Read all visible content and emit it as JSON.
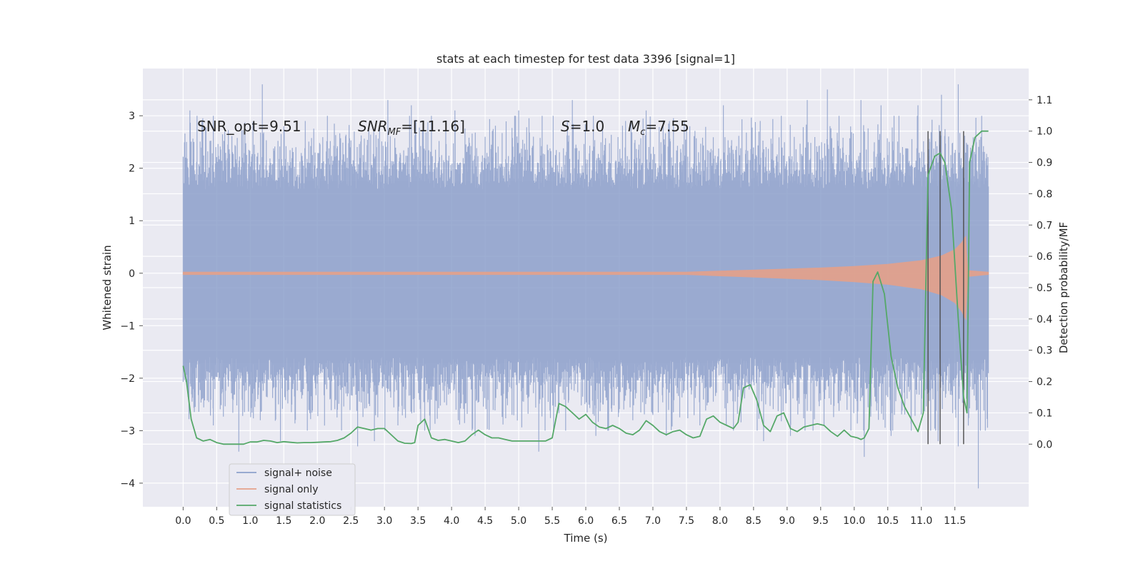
{
  "chart_data": {
    "type": "line",
    "title": "stats at each timestep for test data 3396 [signal=1]",
    "xlabel": "Time (s)",
    "ylabel_left": "Whitened strain",
    "ylabel_right": "Detection probability/MF",
    "xlim": [
      -0.6,
      12.6
    ],
    "ylim_left": [
      -4.45,
      3.9
    ],
    "ylim_right": [
      -0.2,
      1.2
    ],
    "x_ticks": [
      0.0,
      0.5,
      1.0,
      1.5,
      2.0,
      2.5,
      3.0,
      3.5,
      4.0,
      4.5,
      5.0,
      5.5,
      6.0,
      6.5,
      7.0,
      7.5,
      8.0,
      8.5,
      9.0,
      9.5,
      10.0,
      10.5,
      11.0,
      11.5
    ],
    "x_tick_labels": [
      "0.0",
      "0.5",
      "1.0",
      "1.5",
      "2.0",
      "2.5",
      "3.0",
      "3.5",
      "4.0",
      "4.5",
      "5.0",
      "5.5",
      "6.0",
      "6.5",
      "7.0",
      "7.5",
      "8.0",
      "8.5",
      "9.0",
      "9.5",
      "10.0",
      "10.5",
      "11.0",
      "11.5"
    ],
    "y_left_ticks": [
      3,
      2,
      1,
      0,
      -1,
      -2,
      -3,
      -4
    ],
    "y_left_tick_labels": [
      "3",
      "2",
      "1",
      "0",
      "−1",
      "−2",
      "−3",
      "−4"
    ],
    "y_right_ticks": [
      1.1,
      1.0,
      0.9,
      0.8,
      0.7,
      0.6,
      0.5,
      0.4,
      0.3,
      0.2,
      0.1,
      0.0
    ],
    "y_right_tick_labels": [
      "1.1",
      "1.0",
      "0.9",
      "0.8",
      "0.7",
      "0.6",
      "0.5",
      "0.4",
      "0.3",
      "0.2",
      "0.1",
      "0.0"
    ],
    "grid": true,
    "legend_placement": "lower-left",
    "annotations": {
      "snr_opt": "SNR_opt=9.51",
      "snr_mf_sym": "SNR",
      "snr_mf_sub": "MF",
      "snr_mf_val": "=[11.16]",
      "s_sym": "S",
      "s_val": "=1.0",
      "mc_sym": "M",
      "mc_sub": "c",
      "mc_val": "=7.55"
    },
    "series": [
      {
        "name": "signal+ noise",
        "color": "#8da0cb",
        "axis": "left",
        "x_range": [
          0.0,
          12.0
        ],
        "typical_envelope": [
          -1.6,
          1.6
        ],
        "peaks": [
          {
            "x": 0.05,
            "y": 2.5
          },
          {
            "x": 0.1,
            "y": 3.1
          },
          {
            "x": 0.28,
            "y": 2.9
          },
          {
            "x": 0.45,
            "y": 3.0
          },
          {
            "x": 0.62,
            "y": 2.7
          },
          {
            "x": 0.88,
            "y": 2.2
          },
          {
            "x": 1.18,
            "y": 3.6
          },
          {
            "x": 1.5,
            "y": 2.8
          },
          {
            "x": 1.82,
            "y": 2.9
          },
          {
            "x": 2.15,
            "y": 3.0
          },
          {
            "x": 2.55,
            "y": 2.7
          },
          {
            "x": 3.05,
            "y": 3.3
          },
          {
            "x": 3.4,
            "y": 3.2
          },
          {
            "x": 3.7,
            "y": 3.0
          },
          {
            "x": 4.05,
            "y": 3.1
          },
          {
            "x": 4.5,
            "y": 2.6
          },
          {
            "x": 5.0,
            "y": 3.1
          },
          {
            "x": 5.35,
            "y": 3.0
          },
          {
            "x": 5.8,
            "y": 3.3
          },
          {
            "x": 6.25,
            "y": 2.9
          },
          {
            "x": 6.9,
            "y": 3.1
          },
          {
            "x": 7.55,
            "y": 2.8
          },
          {
            "x": 8.05,
            "y": 3.2
          },
          {
            "x": 8.6,
            "y": 2.9
          },
          {
            "x": 9.3,
            "y": 3.3
          },
          {
            "x": 9.6,
            "y": 3.5
          },
          {
            "x": 10.1,
            "y": 3.3
          },
          {
            "x": 10.4,
            "y": 3.2
          },
          {
            "x": 10.95,
            "y": 3.2
          },
          {
            "x": 11.3,
            "y": 3.4
          },
          {
            "x": 11.55,
            "y": 3.6
          },
          {
            "x": 11.9,
            "y": 3.0
          }
        ],
        "troughs": [
          {
            "x": 0.1,
            "y": -1.6
          },
          {
            "x": 0.45,
            "y": -2.9
          },
          {
            "x": 0.83,
            "y": -3.4
          },
          {
            "x": 1.15,
            "y": -2.8
          },
          {
            "x": 1.45,
            "y": -3.2
          },
          {
            "x": 1.85,
            "y": -3.0
          },
          {
            "x": 2.3,
            "y": -2.6
          },
          {
            "x": 2.6,
            "y": -3.3
          },
          {
            "x": 2.85,
            "y": -3.2
          },
          {
            "x": 3.2,
            "y": -2.9
          },
          {
            "x": 3.6,
            "y": -3.0
          },
          {
            "x": 4.1,
            "y": -2.8
          },
          {
            "x": 4.35,
            "y": -3.1
          },
          {
            "x": 4.9,
            "y": -2.7
          },
          {
            "x": 5.3,
            "y": -3.4
          },
          {
            "x": 5.7,
            "y": -3.0
          },
          {
            "x": 6.15,
            "y": -3.1
          },
          {
            "x": 6.7,
            "y": -2.8
          },
          {
            "x": 7.2,
            "y": -3.1
          },
          {
            "x": 7.7,
            "y": -2.9
          },
          {
            "x": 8.2,
            "y": -3.0
          },
          {
            "x": 8.65,
            "y": -3.2
          },
          {
            "x": 9.05,
            "y": -3.1
          },
          {
            "x": 9.55,
            "y": -2.9
          },
          {
            "x": 9.95,
            "y": -3.0
          },
          {
            "x": 10.15,
            "y": -3.5
          },
          {
            "x": 10.55,
            "y": -3.1
          },
          {
            "x": 10.85,
            "y": -3.0
          },
          {
            "x": 11.25,
            "y": -3.2
          },
          {
            "x": 11.55,
            "y": -3.3
          },
          {
            "x": 11.85,
            "y": -4.1
          }
        ]
      },
      {
        "name": "signal only",
        "color": "#e5a18a",
        "axis": "left",
        "envelope": [
          {
            "x": 0.0,
            "y": 0.02
          },
          {
            "x": 7.5,
            "y": 0.02
          },
          {
            "x": 8.0,
            "y": 0.04
          },
          {
            "x": 8.5,
            "y": 0.06
          },
          {
            "x": 9.0,
            "y": 0.08
          },
          {
            "x": 9.5,
            "y": 0.1
          },
          {
            "x": 10.0,
            "y": 0.13
          },
          {
            "x": 10.5,
            "y": 0.17
          },
          {
            "x": 11.0,
            "y": 0.24
          },
          {
            "x": 11.3,
            "y": 0.33
          },
          {
            "x": 11.5,
            "y": 0.45
          },
          {
            "x": 11.6,
            "y": 0.58
          },
          {
            "x": 11.66,
            "y": 0.7
          },
          {
            "x": 11.69,
            "y": 0.05
          },
          {
            "x": 12.0,
            "y": 0.02
          }
        ]
      },
      {
        "name": "signal statistics",
        "color": "#55a868",
        "axis": "right",
        "x": [
          0.0,
          0.05,
          0.12,
          0.2,
          0.3,
          0.4,
          0.5,
          0.6,
          0.7,
          0.8,
          0.9,
          1.0,
          1.1,
          1.2,
          1.3,
          1.4,
          1.5,
          1.6,
          1.7,
          1.8,
          1.9,
          2.0,
          2.1,
          2.2,
          2.3,
          2.4,
          2.5,
          2.6,
          2.7,
          2.8,
          2.9,
          3.0,
          3.1,
          3.2,
          3.3,
          3.4,
          3.45,
          3.5,
          3.6,
          3.7,
          3.8,
          3.9,
          4.0,
          4.1,
          4.2,
          4.3,
          4.4,
          4.5,
          4.6,
          4.7,
          4.8,
          4.9,
          5.0,
          5.1,
          5.2,
          5.3,
          5.4,
          5.5,
          5.6,
          5.7,
          5.8,
          5.9,
          6.0,
          6.1,
          6.2,
          6.3,
          6.4,
          6.5,
          6.6,
          6.7,
          6.8,
          6.9,
          7.0,
          7.1,
          7.2,
          7.3,
          7.4,
          7.5,
          7.6,
          7.7,
          7.8,
          7.9,
          8.0,
          8.1,
          8.2,
          8.27,
          8.35,
          8.45,
          8.55,
          8.65,
          8.75,
          8.85,
          8.95,
          9.05,
          9.15,
          9.25,
          9.35,
          9.45,
          9.55,
          9.65,
          9.75,
          9.85,
          9.95,
          10.05,
          10.1,
          10.15,
          10.22,
          10.28,
          10.35,
          10.45,
          10.55,
          10.65,
          10.75,
          10.85,
          10.95,
          11.03,
          11.1,
          11.2,
          11.28,
          11.35,
          11.45,
          11.55,
          11.63,
          11.68,
          11.72,
          11.8,
          11.9,
          12.0
        ],
        "y": [
          0.25,
          0.2,
          0.08,
          0.02,
          0.01,
          0.015,
          0.005,
          0.0,
          0.0,
          0.0,
          0.0,
          0.007,
          0.007,
          0.012,
          0.01,
          0.005,
          0.008,
          0.006,
          0.004,
          0.005,
          0.005,
          0.006,
          0.007,
          0.008,
          0.012,
          0.02,
          0.035,
          0.055,
          0.05,
          0.045,
          0.05,
          0.05,
          0.03,
          0.01,
          0.003,
          0.002,
          0.005,
          0.06,
          0.08,
          0.02,
          0.012,
          0.015,
          0.01,
          0.005,
          0.01,
          0.03,
          0.045,
          0.03,
          0.02,
          0.02,
          0.015,
          0.01,
          0.01,
          0.01,
          0.01,
          0.01,
          0.01,
          0.02,
          0.13,
          0.12,
          0.1,
          0.08,
          0.095,
          0.07,
          0.055,
          0.05,
          0.06,
          0.05,
          0.035,
          0.03,
          0.045,
          0.075,
          0.06,
          0.04,
          0.03,
          0.04,
          0.045,
          0.03,
          0.02,
          0.025,
          0.08,
          0.09,
          0.07,
          0.06,
          0.05,
          0.07,
          0.18,
          0.19,
          0.14,
          0.06,
          0.04,
          0.09,
          0.1,
          0.05,
          0.04,
          0.055,
          0.06,
          0.065,
          0.06,
          0.04,
          0.025,
          0.045,
          0.025,
          0.02,
          0.015,
          0.02,
          0.05,
          0.52,
          0.55,
          0.48,
          0.28,
          0.18,
          0.12,
          0.08,
          0.04,
          0.1,
          0.86,
          0.92,
          0.93,
          0.9,
          0.75,
          0.4,
          0.15,
          0.1,
          0.9,
          0.98,
          1.0,
          1.0
        ],
        "vlines": [
          {
            "x": 11.1,
            "y0": 0.0,
            "y1": 1.0
          },
          {
            "x": 11.28,
            "y0": 0.0,
            "y1": 1.0
          },
          {
            "x": 11.63,
            "y0": 0.0,
            "y1": 1.0
          }
        ]
      }
    ]
  }
}
